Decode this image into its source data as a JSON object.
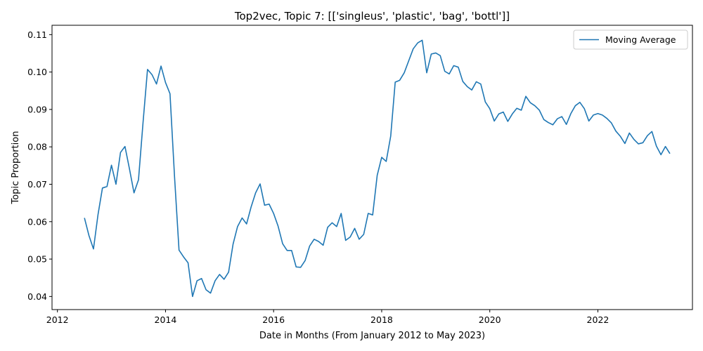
{
  "chart_data": {
    "type": "line",
    "title": "Top2vec, Topic 7: [['singleus', 'plastic', 'bag', 'bottl']]",
    "xlabel": "Date in Months (From January 2012 to May 2023)",
    "ylabel": "Topic Proportion",
    "xlim": [
      2011.9,
      2023.75
    ],
    "ylim": [
      0.0365,
      0.1125
    ],
    "xticks": [
      2012,
      2014,
      2016,
      2018,
      2020,
      2022
    ],
    "yticks": [
      0.04,
      0.05,
      0.06,
      0.07,
      0.08,
      0.09,
      0.1,
      0.11
    ],
    "ytick_labels": [
      "0.04",
      "0.05",
      "0.06",
      "0.07",
      "0.08",
      "0.09",
      "0.10",
      "0.11"
    ],
    "grid": false,
    "legend_position": "top-right",
    "line_color": "#1f77b4",
    "series": [
      {
        "name": "Moving Average",
        "x": [
          2012.5,
          2012.583,
          2012.667,
          2012.75,
          2012.833,
          2012.917,
          2013.0,
          2013.083,
          2013.167,
          2013.25,
          2013.333,
          2013.417,
          2013.5,
          2013.583,
          2013.667,
          2013.75,
          2013.833,
          2013.917,
          2014.0,
          2014.083,
          2014.167,
          2014.25,
          2014.333,
          2014.417,
          2014.5,
          2014.583,
          2014.667,
          2014.75,
          2014.833,
          2014.917,
          2015.0,
          2015.083,
          2015.167,
          2015.25,
          2015.333,
          2015.417,
          2015.5,
          2015.583,
          2015.667,
          2015.75,
          2015.833,
          2015.917,
          2016.0,
          2016.083,
          2016.167,
          2016.25,
          2016.333,
          2016.417,
          2016.5,
          2016.583,
          2016.667,
          2016.75,
          2016.833,
          2016.917,
          2017.0,
          2017.083,
          2017.167,
          2017.25,
          2017.333,
          2017.417,
          2017.5,
          2017.583,
          2017.667,
          2017.75,
          2017.833,
          2017.917,
          2018.0,
          2018.083,
          2018.167,
          2018.25,
          2018.333,
          2018.417,
          2018.5,
          2018.583,
          2018.667,
          2018.75,
          2018.833,
          2018.917,
          2019.0,
          2019.083,
          2019.167,
          2019.25,
          2019.333,
          2019.417,
          2019.5,
          2019.583,
          2019.667,
          2019.75,
          2019.833,
          2019.917,
          2020.0,
          2020.083,
          2020.167,
          2020.25,
          2020.333,
          2020.417,
          2020.5,
          2020.583,
          2020.667,
          2020.75,
          2020.833,
          2020.917,
          2021.0,
          2021.083,
          2021.167,
          2021.25,
          2021.333,
          2021.417,
          2021.5,
          2021.583,
          2021.667,
          2021.75,
          2021.833,
          2021.917,
          2022.0,
          2022.083,
          2022.167,
          2022.25,
          2022.333,
          2022.417,
          2022.5,
          2022.583,
          2022.667,
          2022.75,
          2022.833,
          2022.917,
          2023.0,
          2023.083,
          2023.167,
          2023.25,
          2023.333
        ],
        "values": [
          0.061,
          0.0563,
          0.0527,
          0.0618,
          0.069,
          0.0694,
          0.0751,
          0.07,
          0.0785,
          0.0801,
          0.0741,
          0.0677,
          0.0712,
          0.0863,
          0.1007,
          0.0993,
          0.0968,
          0.1016,
          0.0972,
          0.0942,
          0.072,
          0.0524,
          0.0506,
          0.049,
          0.04,
          0.0442,
          0.0448,
          0.0418,
          0.0409,
          0.0442,
          0.0459,
          0.0446,
          0.0465,
          0.054,
          0.0587,
          0.061,
          0.0594,
          0.0639,
          0.0677,
          0.0701,
          0.0644,
          0.0647,
          0.0622,
          0.0588,
          0.0541,
          0.0523,
          0.0523,
          0.0479,
          0.0478,
          0.0496,
          0.0535,
          0.0553,
          0.0547,
          0.0537,
          0.0585,
          0.0597,
          0.0587,
          0.0622,
          0.055,
          0.0559,
          0.0582,
          0.0553,
          0.0566,
          0.0622,
          0.0618,
          0.0724,
          0.0772,
          0.0761,
          0.0829,
          0.0973,
          0.0978,
          0.0998,
          0.103,
          0.1062,
          0.1078,
          0.1085,
          0.0998,
          0.1048,
          0.1051,
          0.1044,
          0.1002,
          0.0995,
          0.1017,
          0.1013,
          0.0975,
          0.0961,
          0.0952,
          0.0974,
          0.0968,
          0.092,
          0.0902,
          0.0869,
          0.0888,
          0.0893,
          0.0868,
          0.0888,
          0.0903,
          0.0898,
          0.0935,
          0.0918,
          0.091,
          0.0898,
          0.0873,
          0.0865,
          0.0859,
          0.0875,
          0.0881,
          0.086,
          0.0889,
          0.091,
          0.0919,
          0.0902,
          0.0869,
          0.0885,
          0.0889,
          0.0885,
          0.0876,
          0.0864,
          0.0842,
          0.0828,
          0.0809,
          0.0837,
          0.082,
          0.0808,
          0.0811,
          0.083,
          0.0841,
          0.0802,
          0.0779,
          0.0801,
          0.0782
        ]
      }
    ]
  }
}
